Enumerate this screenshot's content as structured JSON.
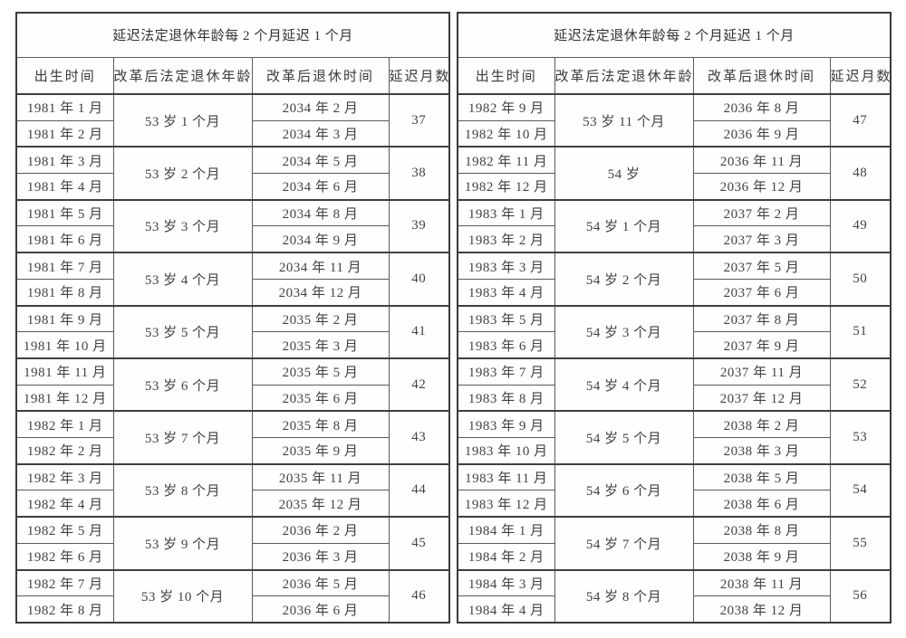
{
  "colors": {
    "background": "#ffffff",
    "text": "#3e3e3e",
    "border": "#5a5a5a",
    "outer_border": "#3a3a3a"
  },
  "tables": [
    {
      "title": "延迟法定退休年龄每 2 个月延迟 1 个月",
      "columns": [
        "出生时间",
        "改革后法定退休年龄",
        "改革后退休时间",
        "延迟月数"
      ],
      "groups": [
        {
          "births": [
            "1981 年 1 月",
            "1981 年 2 月"
          ],
          "age": "53 岁 1 个月",
          "retirements": [
            "2034 年 2 月",
            "2034 年 3 月"
          ],
          "delay": "37"
        },
        {
          "births": [
            "1981 年 3 月",
            "1981 年 4 月"
          ],
          "age": "53 岁 2 个月",
          "retirements": [
            "2034 年 5 月",
            "2034 年 6 月"
          ],
          "delay": "38"
        },
        {
          "births": [
            "1981 年 5 月",
            "1981 年 6 月"
          ],
          "age": "53 岁 3 个月",
          "retirements": [
            "2034 年 8 月",
            "2034 年 9 月"
          ],
          "delay": "39"
        },
        {
          "births": [
            "1981 年 7 月",
            "1981 年 8 月"
          ],
          "age": "53 岁 4 个月",
          "retirements": [
            "2034 年 11 月",
            "2034 年 12 月"
          ],
          "delay": "40"
        },
        {
          "births": [
            "1981 年 9 月",
            "1981 年 10 月"
          ],
          "age": "53 岁 5 个月",
          "retirements": [
            "2035 年 2 月",
            "2035 年 3 月"
          ],
          "delay": "41"
        },
        {
          "births": [
            "1981 年 11 月",
            "1981 年 12 月"
          ],
          "age": "53 岁 6 个月",
          "retirements": [
            "2035 年 5 月",
            "2035 年 6 月"
          ],
          "delay": "42"
        },
        {
          "births": [
            "1982 年 1 月",
            "1982 年 2 月"
          ],
          "age": "53 岁 7 个月",
          "retirements": [
            "2035 年 8 月",
            "2035 年 9 月"
          ],
          "delay": "43"
        },
        {
          "births": [
            "1982 年 3 月",
            "1982 年 4 月"
          ],
          "age": "53 岁 8 个月",
          "retirements": [
            "2035 年 11 月",
            "2035 年 12 月"
          ],
          "delay": "44"
        },
        {
          "births": [
            "1982 年 5 月",
            "1982 年 6 月"
          ],
          "age": "53 岁 9 个月",
          "retirements": [
            "2036 年 2 月",
            "2036 年 3 月"
          ],
          "delay": "45"
        },
        {
          "births": [
            "1982 年 7 月",
            "1982 年 8 月"
          ],
          "age": "53 岁 10 个月",
          "retirements": [
            "2036 年 5 月",
            "2036 年 6 月"
          ],
          "delay": "46"
        }
      ]
    },
    {
      "title": "延迟法定退休年龄每 2 个月延迟 1 个月",
      "columns": [
        "出生时间",
        "改革后法定退休年龄",
        "改革后退休时间",
        "延迟月数"
      ],
      "groups": [
        {
          "births": [
            "1982 年 9 月",
            "1982 年 10 月"
          ],
          "age": "53 岁 11 个月",
          "retirements": [
            "2036 年 8 月",
            "2036 年 9 月"
          ],
          "delay": "47"
        },
        {
          "births": [
            "1982 年 11 月",
            "1982 年 12 月"
          ],
          "age": "54 岁",
          "retirements": [
            "2036 年 11 月",
            "2036 年 12 月"
          ],
          "delay": "48"
        },
        {
          "births": [
            "1983 年 1 月",
            "1983 年 2 月"
          ],
          "age": "54 岁 1 个月",
          "retirements": [
            "2037 年 2 月",
            "2037 年 3 月"
          ],
          "delay": "49"
        },
        {
          "births": [
            "1983 年 3 月",
            "1983 年 4 月"
          ],
          "age": "54 岁 2 个月",
          "retirements": [
            "2037 年 5 月",
            "2037 年 6 月"
          ],
          "delay": "50"
        },
        {
          "births": [
            "1983 年 5 月",
            "1983 年 6 月"
          ],
          "age": "54 岁 3 个月",
          "retirements": [
            "2037 年 8 月",
            "2037 年 9 月"
          ],
          "delay": "51"
        },
        {
          "births": [
            "1983 年 7 月",
            "1983 年 8 月"
          ],
          "age": "54 岁 4 个月",
          "retirements": [
            "2037 年 11 月",
            "2037 年 12 月"
          ],
          "delay": "52"
        },
        {
          "births": [
            "1983 年 9 月",
            "1983 年 10 月"
          ],
          "age": "54 岁 5 个月",
          "retirements": [
            "2038 年 2 月",
            "2038 年 3 月"
          ],
          "delay": "53"
        },
        {
          "births": [
            "1983 年 11 月",
            "1983 年 12 月"
          ],
          "age": "54 岁 6 个月",
          "retirements": [
            "2038 年 5 月",
            "2038 年 6 月"
          ],
          "delay": "54"
        },
        {
          "births": [
            "1984 年 1 月",
            "1984 年 2 月"
          ],
          "age": "54 岁 7 个月",
          "retirements": [
            "2038 年 8 月",
            "2038 年 9 月"
          ],
          "delay": "55"
        },
        {
          "births": [
            "1984 年 3 月",
            "1984 年 4 月"
          ],
          "age": "54 岁 8 个月",
          "retirements": [
            "2038 年 11 月",
            "2038 年 12 月"
          ],
          "delay": "56"
        }
      ]
    }
  ]
}
